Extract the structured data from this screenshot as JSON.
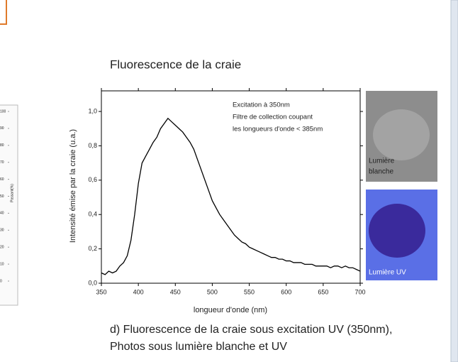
{
  "chart_data": [
    {
      "type": "line",
      "title": "Fluorescence de la craie",
      "x_label": "longueur d'onde (nm)",
      "y_label": "Intensité émise par la craie (u.a.)",
      "annotation": [
        "Excitation à 350nm",
        "Filtre de collection coupant",
        "les longueurs d'onde < 385nm"
      ],
      "x": [
        350,
        355,
        360,
        365,
        370,
        375,
        380,
        385,
        390,
        395,
        400,
        405,
        410,
        415,
        420,
        425,
        430,
        435,
        440,
        445,
        450,
        455,
        460,
        465,
        470,
        475,
        480,
        485,
        490,
        495,
        500,
        505,
        510,
        515,
        520,
        525,
        530,
        535,
        540,
        545,
        550,
        555,
        560,
        565,
        570,
        575,
        580,
        585,
        590,
        595,
        600,
        605,
        610,
        615,
        620,
        625,
        630,
        635,
        640,
        645,
        650,
        655,
        660,
        665,
        670,
        675,
        680,
        685,
        690,
        695,
        700
      ],
      "values": [
        0.06,
        0.05,
        0.07,
        0.06,
        0.07,
        0.1,
        0.12,
        0.16,
        0.25,
        0.4,
        0.58,
        0.7,
        0.74,
        0.78,
        0.82,
        0.85,
        0.9,
        0.93,
        0.96,
        0.94,
        0.92,
        0.9,
        0.88,
        0.85,
        0.82,
        0.78,
        0.72,
        0.66,
        0.6,
        0.54,
        0.48,
        0.44,
        0.4,
        0.37,
        0.34,
        0.31,
        0.28,
        0.26,
        0.24,
        0.23,
        0.21,
        0.2,
        0.19,
        0.18,
        0.17,
        0.16,
        0.15,
        0.15,
        0.14,
        0.14,
        0.13,
        0.13,
        0.12,
        0.12,
        0.12,
        0.11,
        0.11,
        0.11,
        0.1,
        0.1,
        0.1,
        0.1,
        0.09,
        0.1,
        0.1,
        0.09,
        0.1,
        0.09,
        0.09,
        0.08,
        0.07
      ],
      "color": "#000000",
      "xlim": [
        350,
        700
      ],
      "xticks": [
        350,
        400,
        450,
        500,
        550,
        600,
        650,
        700
      ],
      "ylim": [
        0,
        1.12
      ],
      "yticks": [
        {
          "value": 0,
          "label": "0,0"
        },
        {
          "value": 0.2,
          "label": "0,2"
        },
        {
          "value": 0.4,
          "label": "0,4"
        },
        {
          "value": 0.6,
          "label": "0,6"
        },
        {
          "value": 0.8,
          "label": "0,8"
        },
        {
          "value": 1,
          "label": "1,0"
        }
      ]
    },
    {
      "type": "axis",
      "y2_label": "Passant(%)",
      "y2lim": [
        0,
        100
      ],
      "y2ticks": [
        0,
        10,
        20,
        30,
        40,
        50,
        60,
        70,
        80,
        90,
        100
      ]
    }
  ],
  "photos": [
    {
      "label": [
        "Lumière",
        "blanche"
      ]
    },
    {
      "label": [
        "Lumière UV"
      ]
    }
  ],
  "caption": [
    "d) Fluorescence de la craie sous excitation UV (350nm),",
    "Photos sous lumière blanche et UV"
  ]
}
